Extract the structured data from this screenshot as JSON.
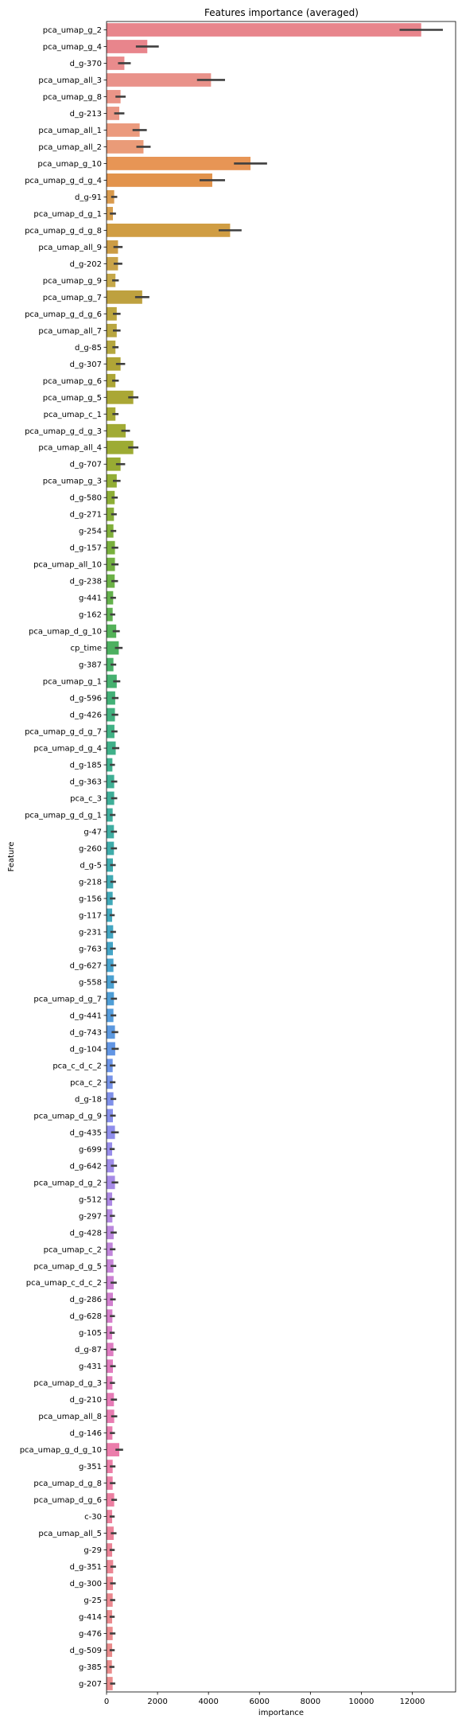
{
  "chart_data": {
    "type": "bar",
    "orientation": "horizontal",
    "title": "Features importance (averaged)",
    "xlabel": "importance",
    "ylabel": "Feature",
    "xlim": [
      0,
      13700
    ],
    "xticks": [
      0,
      2000,
      4000,
      6000,
      8000,
      10000,
      12000
    ],
    "grid": false,
    "legend": "none",
    "error_bars": true,
    "categories": [
      "pca_umap_g_2",
      "pca_umap_g_4",
      "d_g-370",
      "pca_umap_all_3",
      "pca_umap_g_8",
      "d_g-213",
      "pca_umap_all_1",
      "pca_umap_all_2",
      "pca_umap_g_10",
      "pca_umap_g_d_g_4",
      "d_g-91",
      "pca_umap_d_g_1",
      "pca_umap_g_d_g_8",
      "pca_umap_all_9",
      "d_g-202",
      "pca_umap_g_9",
      "pca_umap_g_7",
      "pca_umap_g_d_g_6",
      "pca_umap_all_7",
      "d_g-85",
      "d_g-307",
      "pca_umap_g_6",
      "pca_umap_g_5",
      "pca_umap_c_1",
      "pca_umap_g_d_g_3",
      "pca_umap_all_4",
      "d_g-707",
      "pca_umap_g_3",
      "d_g-580",
      "d_g-271",
      "g-254",
      "d_g-157",
      "pca_umap_all_10",
      "d_g-238",
      "g-441",
      "g-162",
      "pca_umap_d_g_10",
      "cp_time",
      "g-387",
      "pca_umap_g_1",
      "d_g-596",
      "d_g-426",
      "pca_umap_g_d_g_7",
      "pca_umap_d_g_4",
      "d_g-185",
      "d_g-363",
      "pca_c_3",
      "pca_umap_g_d_g_1",
      "g-47",
      "g-260",
      "d_g-5",
      "g-218",
      "g-156",
      "g-117",
      "g-231",
      "g-763",
      "d_g-627",
      "g-558",
      "pca_umap_d_g_7",
      "d_g-441",
      "d_g-743",
      "d_g-104",
      "pca_c_d_c_2",
      "pca_c_2",
      "d_g-18",
      "pca_umap_d_g_9",
      "d_g-435",
      "g-699",
      "d_g-642",
      "pca_umap_d_g_2",
      "g-512",
      "g-297",
      "d_g-428",
      "pca_umap_c_2",
      "pca_umap_d_g_5",
      "pca_umap_c_d_c_2",
      "d_g-286",
      "d_g-628",
      "g-105",
      "d_g-87",
      "g-431",
      "pca_umap_d_g_3",
      "d_g-210",
      "pca_umap_all_8",
      "d_g-146",
      "pca_umap_g_d_g_10",
      "g-351",
      "pca_umap_d_g_8",
      "pca_umap_d_g_6",
      "c-30",
      "pca_umap_all_5",
      "g-29",
      "d_g-351",
      "d_g-300",
      "g-25",
      "g-414",
      "g-476",
      "d_g-509",
      "g-385",
      "g-207"
    ],
    "values": [
      12350,
      1600,
      700,
      4100,
      550,
      500,
      1300,
      1450,
      5650,
      4150,
      300,
      250,
      4850,
      450,
      450,
      350,
      1400,
      400,
      400,
      350,
      550,
      350,
      1050,
      350,
      750,
      1050,
      550,
      400,
      320,
      290,
      270,
      330,
      330,
      320,
      260,
      240,
      380,
      480,
      270,
      400,
      340,
      330,
      310,
      360,
      230,
      300,
      300,
      240,
      290,
      290,
      250,
      260,
      240,
      220,
      260,
      250,
      270,
      290,
      290,
      270,
      330,
      340,
      240,
      240,
      270,
      250,
      330,
      220,
      290,
      330,
      220,
      230,
      280,
      240,
      270,
      280,
      250,
      230,
      220,
      270,
      250,
      230,
      290,
      300,
      230,
      500,
      240,
      240,
      300,
      220,
      280,
      220,
      260,
      250,
      240,
      220,
      240,
      220,
      210,
      240
    ],
    "errors": [
      850,
      450,
      250,
      550,
      200,
      200,
      280,
      280,
      650,
      500,
      120,
      120,
      450,
      180,
      170,
      130,
      280,
      150,
      150,
      120,
      180,
      130,
      200,
      120,
      170,
      200,
      180,
      150,
      120,
      110,
      110,
      130,
      140,
      130,
      110,
      100,
      140,
      150,
      110,
      140,
      130,
      130,
      120,
      140,
      100,
      120,
      120,
      110,
      120,
      120,
      110,
      110,
      110,
      100,
      110,
      110,
      110,
      120,
      120,
      110,
      130,
      140,
      110,
      110,
      110,
      110,
      150,
      100,
      120,
      130,
      100,
      100,
      120,
      110,
      110,
      120,
      110,
      100,
      100,
      110,
      110,
      100,
      120,
      120,
      100,
      150,
      110,
      110,
      110,
      100,
      110,
      100,
      110,
      110,
      100,
      100,
      110,
      100,
      100,
      100
    ],
    "colors": [
      "#e8858c",
      "#e8858c",
      "#e98b8c",
      "#e9928a",
      "#ea9487",
      "#ea9785",
      "#eb9a7d",
      "#ea9b78",
      "#e79555",
      "#e2934c",
      "#d99a4d",
      "#d69f4f",
      "#d09d43",
      "#cc9c45",
      "#c9a349",
      "#c6a849",
      "#bea13f",
      "#bca63f",
      "#b9a641",
      "#b5a73f",
      "#b0a536",
      "#ada636",
      "#aaa735",
      "#a6a935",
      "#a1ab35",
      "#9dab33",
      "#98ab33",
      "#92ad35",
      "#8dae36",
      "#87ae38",
      "#80af3a",
      "#79b03d",
      "#72b041",
      "#6bb146",
      "#64b14c",
      "#5eb151",
      "#53b158",
      "#4cb060",
      "#48b068",
      "#45b06f",
      "#43b077",
      "#41b07e",
      "#40b184",
      "#40b089",
      "#3fb08e",
      "#3faf94",
      "#3fae98",
      "#3fae9d",
      "#3fada2",
      "#3facaa",
      "#3fabae",
      "#40aab3",
      "#41a9b9",
      "#42a8bd",
      "#43a6c2",
      "#45a5c7",
      "#48a3cc",
      "#4ba1d1",
      "#4f9ed6",
      "#559cdb",
      "#5b98df",
      "#6296e4",
      "#6c94e7",
      "#7692e8",
      "#7f90e9",
      "#878fea",
      "#8f8deb",
      "#988deb",
      "#9f8ce8",
      "#a68ae6",
      "#ad89e4",
      "#b489e1",
      "#bb88de",
      "#c186db",
      "#c784d8",
      "#cc82d4",
      "#d180cf",
      "#d67fcb",
      "#da7ec6",
      "#de7dc2",
      "#e17cbe",
      "#e37cba",
      "#e67bb6",
      "#e87cb1",
      "#e97cad",
      "#eb7dab",
      "#ec7ea7",
      "#ec7fa4",
      "#ec7fa1",
      "#ec819d",
      "#ec839a",
      "#ec8497",
      "#ec8694",
      "#ec8791",
      "#ec8990",
      "#eb8a8e",
      "#eb8b8d",
      "#ea8c8c",
      "#ea8c8c",
      "#ea8c8c"
    ]
  }
}
